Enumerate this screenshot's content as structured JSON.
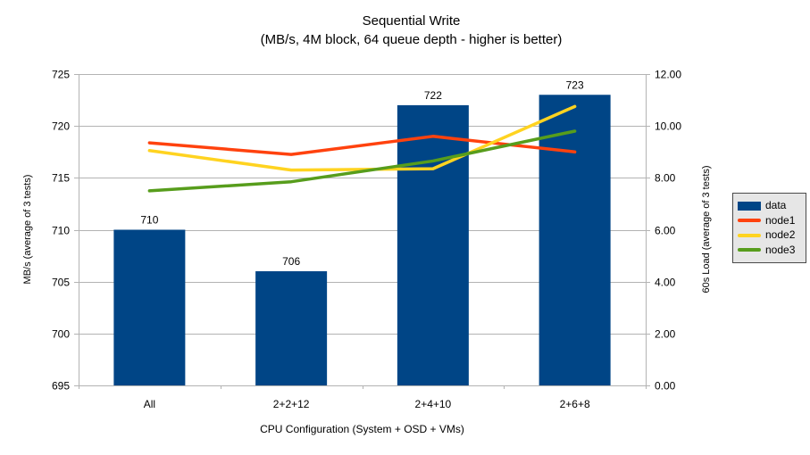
{
  "chart_data": {
    "type": "combo-bar-line",
    "title": "Sequential Write",
    "subtitle": "(MB/s, 4M block, 64 queue depth - higher is better)",
    "xlabel": "CPU Configuration (System + OSD + VMs)",
    "ylabel_left": "MB/s (average of 3 tests)",
    "ylabel_right": "60s Load (average of 3 tests)",
    "categories": [
      "All",
      "2+2+12",
      "2+4+10",
      "2+6+8"
    ],
    "left_axis": {
      "min": 695,
      "max": 725,
      "step": 5,
      "tick_labels": [
        "695",
        "700",
        "705",
        "710",
        "715",
        "720",
        "725"
      ]
    },
    "right_axis": {
      "min": 0,
      "max": 12,
      "step": 2,
      "tick_labels": [
        "0.00",
        "2.00",
        "4.00",
        "6.00",
        "8.00",
        "10.00",
        "12.00"
      ]
    },
    "series": [
      {
        "name": "data",
        "type": "bar",
        "axis": "left",
        "color": "#004586",
        "values": [
          710,
          706,
          722,
          723
        ],
        "value_labels": [
          "710",
          "706",
          "722",
          "723"
        ]
      },
      {
        "name": "node1",
        "type": "line",
        "axis": "right",
        "color": "#FF420E",
        "values": [
          9.35,
          8.9,
          9.6,
          9.0
        ]
      },
      {
        "name": "node2",
        "type": "line",
        "axis": "right",
        "color": "#FFD320",
        "values": [
          9.05,
          8.3,
          8.35,
          10.75
        ]
      },
      {
        "name": "node3",
        "type": "line",
        "axis": "right",
        "color": "#579D1C",
        "values": [
          7.5,
          7.85,
          8.65,
          9.8
        ]
      }
    ],
    "legend": {
      "position": "right",
      "items": [
        "data",
        "node1",
        "node2",
        "node3"
      ]
    },
    "grid": true,
    "colors": {
      "background": "#ffffff",
      "grid": "#b3b3b3",
      "axis": "#b3b3b3",
      "text": "#000000",
      "legend_bg": "#e6e6e6",
      "legend_border": "#4a4a4a"
    }
  }
}
